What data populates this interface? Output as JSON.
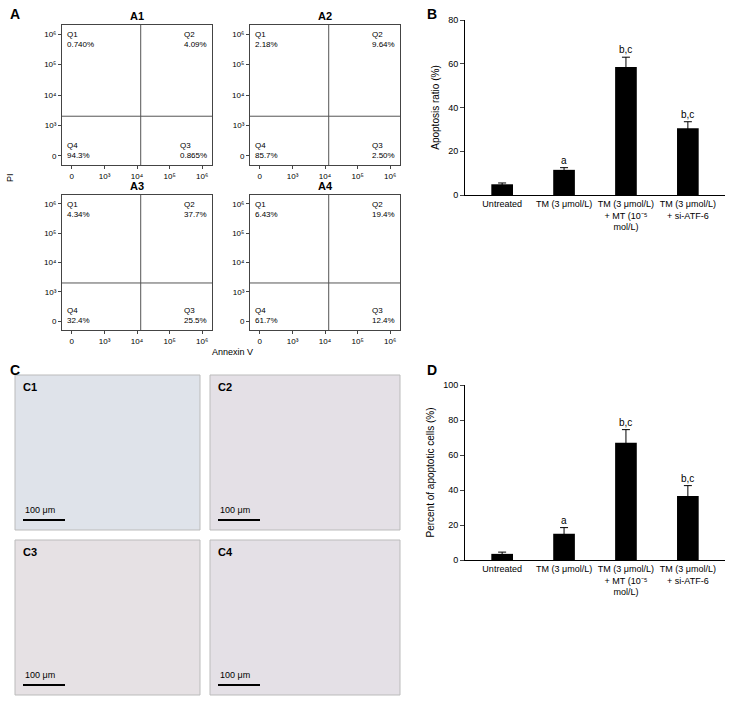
{
  "chart_data": [
    {
      "type": "quadrant_scatter",
      "panel": "A",
      "xlabel": "Annexin V",
      "ylabel": "PI",
      "log": true,
      "xlim": [
        -150,
        2000000
      ],
      "ylim": [
        -150,
        2000000
      ],
      "xticks": [
        0,
        {
          "value": 1000,
          "label": "10³"
        },
        {
          "value": 10000,
          "label": "10⁴"
        },
        {
          "value": 100000,
          "label": "10⁵"
        },
        {
          "value": 1000000,
          "label": "10⁶"
        }
      ],
      "yticks": [
        0,
        {
          "value": 1000,
          "label": "10³"
        },
        {
          "value": 10000,
          "label": "10⁴"
        },
        {
          "value": 100000,
          "label": "10⁵"
        },
        {
          "value": 1000000,
          "label": "10⁶"
        }
      ],
      "gate": {
        "x": 13000,
        "y": 2000
      },
      "subplots": [
        {
          "title": "A1",
          "quadrants": [
            {
              "name": "Q1",
              "value": 0.74,
              "label": "0.740%"
            },
            {
              "name": "Q2",
              "value": 4.09,
              "label": "4.09%"
            },
            {
              "name": "Q3",
              "value": 0.865,
              "label": "0.865%"
            },
            {
              "name": "Q4",
              "value": 94.3,
              "label": "94.3%"
            }
          ]
        },
        {
          "title": "A2",
          "quadrants": [
            {
              "name": "Q1",
              "value": 2.18,
              "label": "2.18%"
            },
            {
              "name": "Q2",
              "value": 9.64,
              "label": "9.64%"
            },
            {
              "name": "Q3",
              "value": 2.5,
              "label": "2.50%"
            },
            {
              "name": "Q4",
              "value": 85.7,
              "label": "85.7%"
            }
          ]
        },
        {
          "title": "A3",
          "quadrants": [
            {
              "name": "Q1",
              "value": 4.34,
              "label": "4.34%"
            },
            {
              "name": "Q2",
              "value": 37.7,
              "label": "37.7%"
            },
            {
              "name": "Q3",
              "value": 25.5,
              "label": "25.5%"
            },
            {
              "name": "Q4",
              "value": 32.4,
              "label": "32.4%"
            }
          ]
        },
        {
          "title": "A4",
          "quadrants": [
            {
              "name": "Q1",
              "value": 6.43,
              "label": "6.43%"
            },
            {
              "name": "Q2",
              "value": 19.4,
              "label": "19.4%"
            },
            {
              "name": "Q3",
              "value": 12.4,
              "label": "12.4%"
            },
            {
              "name": "Q4",
              "value": 61.7,
              "label": "61.7%"
            }
          ]
        }
      ]
    },
    {
      "type": "bar",
      "panel": "B",
      "ylabel": "Apoptosis ratio (%)",
      "categories": [
        "Untreated",
        "TM (3 μmol/L)",
        "TM (3 μmol/L) + MT (10⁻⁵ mol/L)",
        "TM (3 μmol/L) + si-ATF-6"
      ],
      "values": [
        4.9,
        11.5,
        58.5,
        30.5
      ],
      "errors": [
        0.6,
        1.0,
        4.5,
        3.0
      ],
      "significance": [
        null,
        "a",
        "b,c",
        "b,c"
      ],
      "color": "#000000",
      "ylim": [
        0,
        80
      ],
      "yticks": [
        0,
        20,
        40,
        60,
        80
      ],
      "grid": false
    },
    {
      "type": "image_grid",
      "panel": "C",
      "images": [
        {
          "title": "C1",
          "scale_bar": "100 μm"
        },
        {
          "title": "C2",
          "scale_bar": "100 μm"
        },
        {
          "title": "C3",
          "scale_bar": "100 μm"
        },
        {
          "title": "C4",
          "scale_bar": "100 μm"
        }
      ]
    },
    {
      "type": "bar",
      "panel": "D",
      "ylabel": "Percent of apoptotic cells (%)",
      "categories": [
        "Untreated",
        "TM (3 μmol/L)",
        "TM (3 μmol/L) + MT (10⁻⁵ mol/L)",
        "TM (3 μmol/L) + si-ATF-6"
      ],
      "values": [
        3.5,
        15.0,
        67.0,
        36.5
      ],
      "errors": [
        1.0,
        3.5,
        7.5,
        6.0
      ],
      "significance": [
        null,
        "a",
        "b,c",
        "b,c"
      ],
      "color": "#000000",
      "ylim": [
        0,
        100
      ],
      "yticks": [
        0,
        20,
        40,
        60,
        80,
        100
      ],
      "grid": false
    }
  ]
}
